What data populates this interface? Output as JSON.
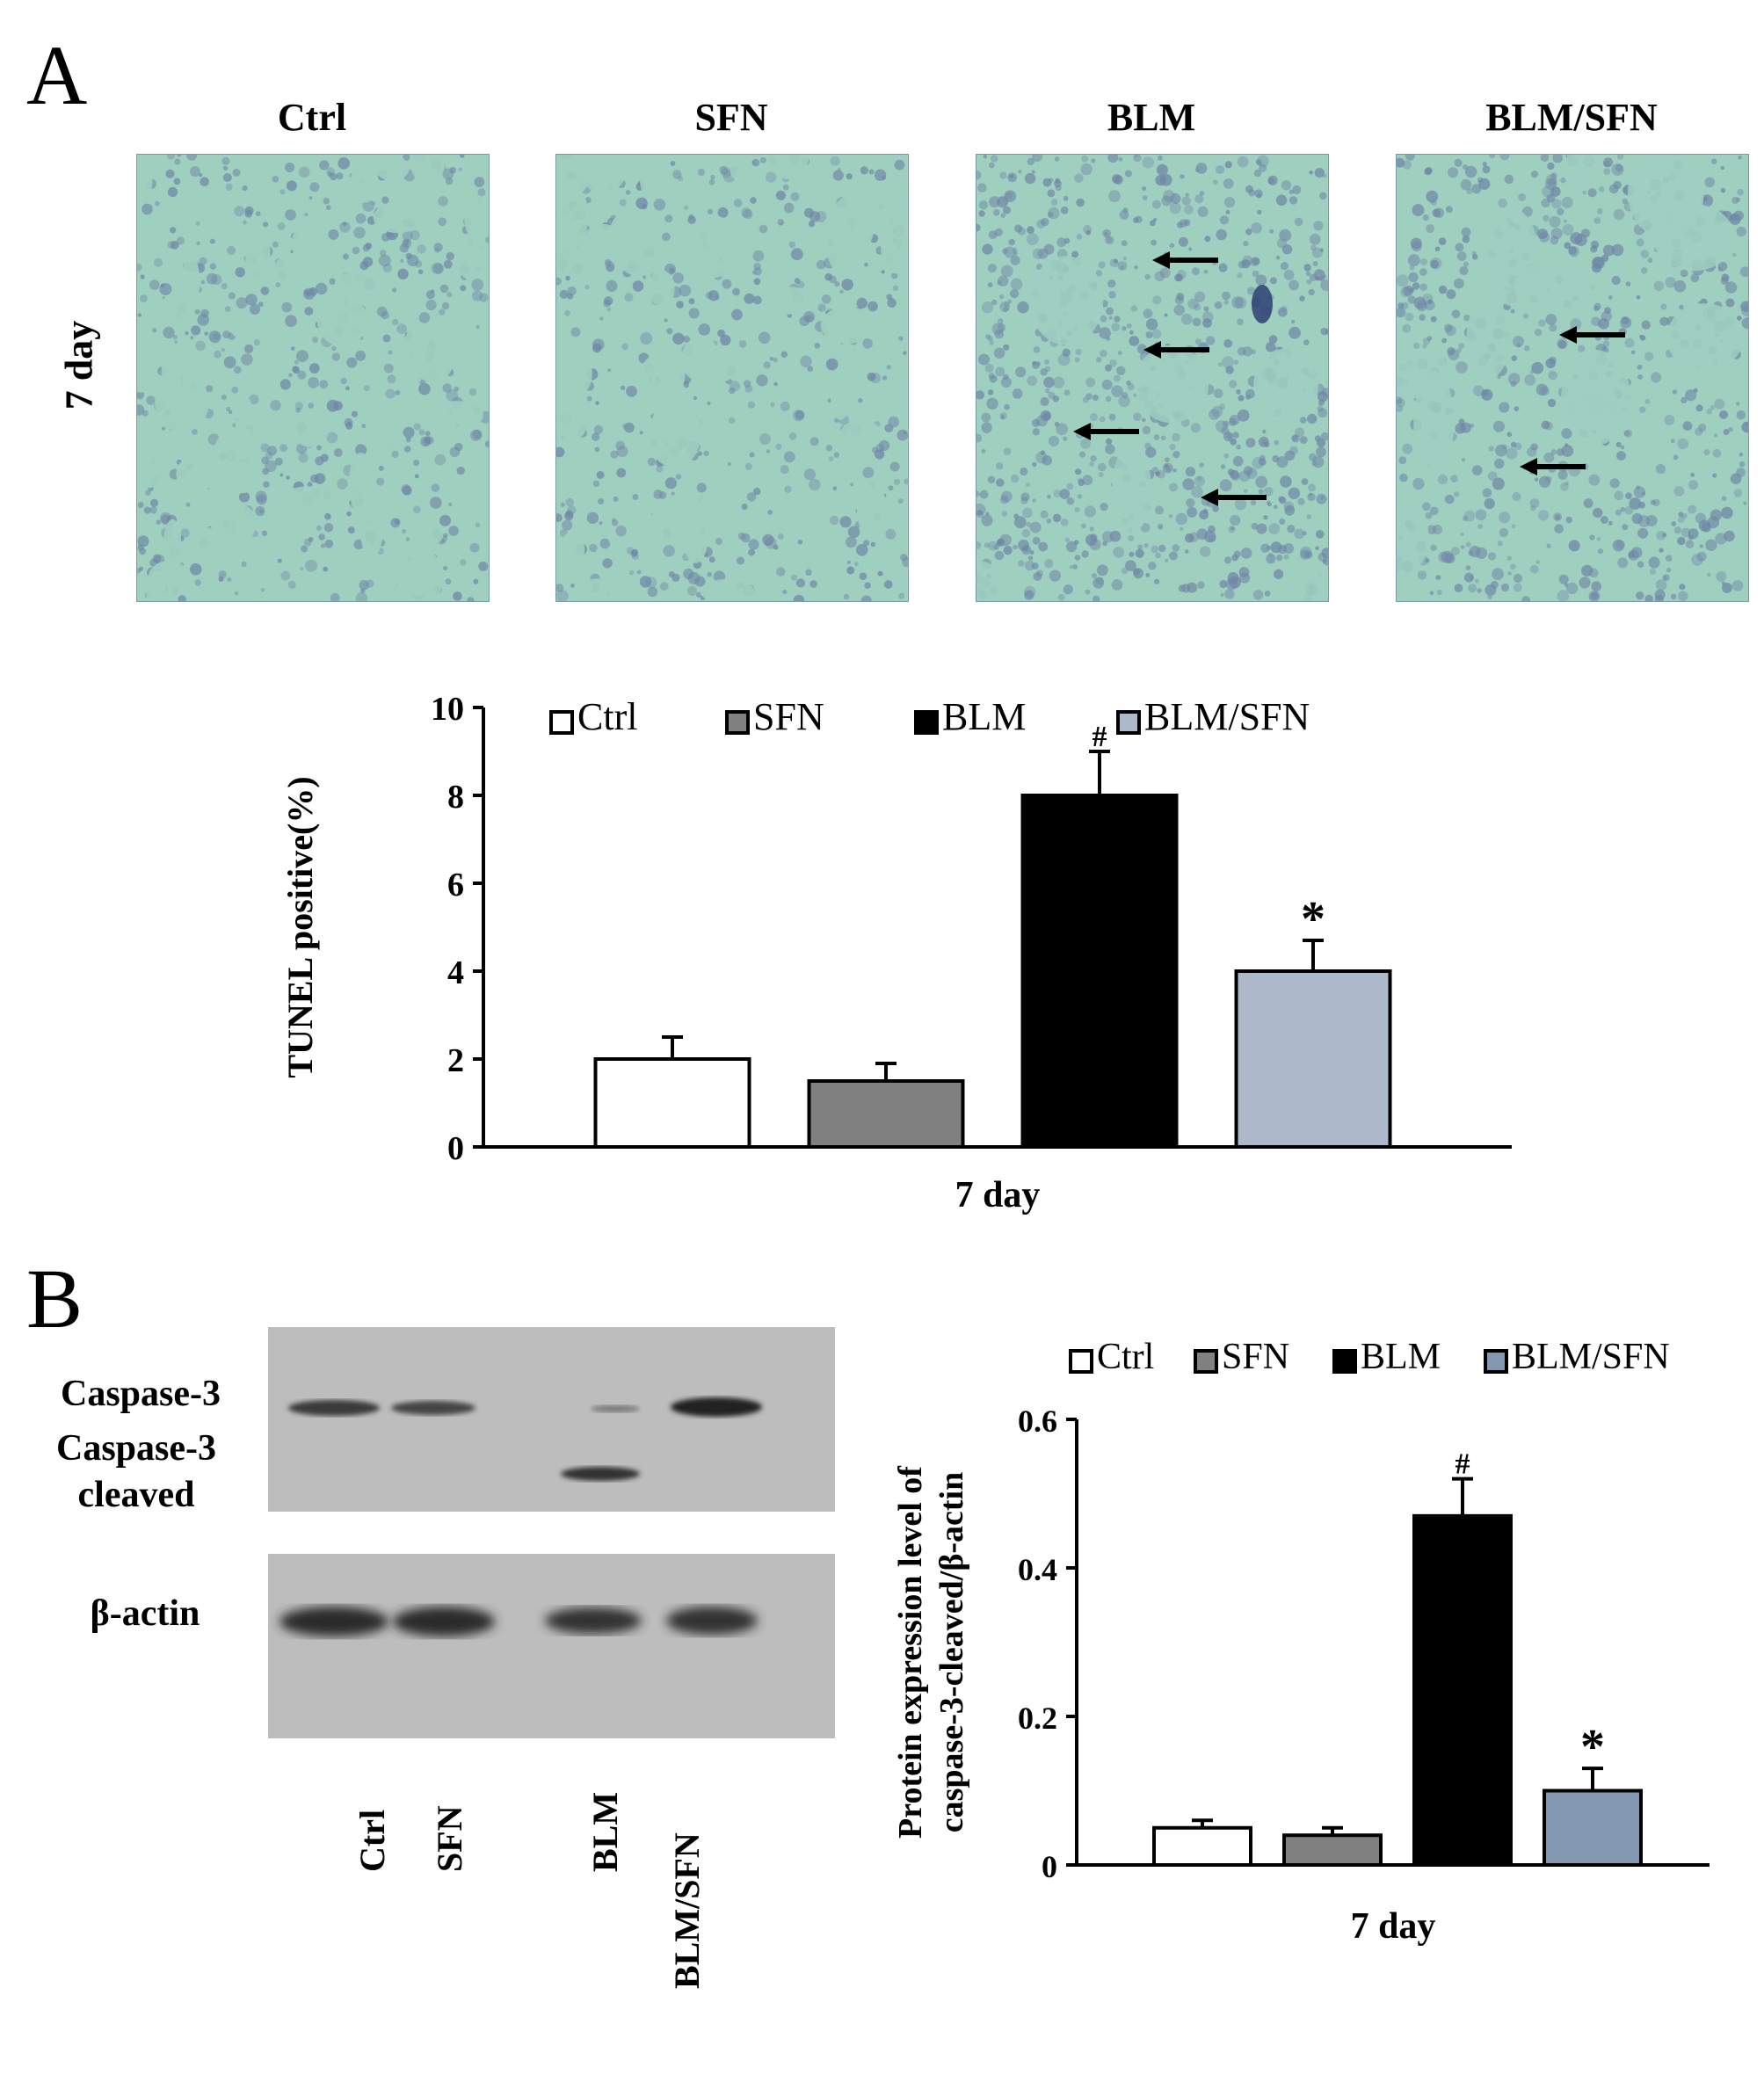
{
  "panelA": {
    "letter": "A",
    "columns": [
      "Ctrl",
      "SFN",
      "BLM",
      "BLM/SFN"
    ],
    "row_label": "7 day"
  },
  "panelB": {
    "letter": "B",
    "blot_labels": {
      "caspase3": "Caspase-3",
      "caspase3_cleaved_line1": "Caspase-3",
      "caspase3_cleaved_line2": "cleaved",
      "beta_actin": "β-actin"
    },
    "lanes": [
      "Ctrl",
      "SFN",
      "BLM",
      "BLM/SFN"
    ]
  },
  "colors": {
    "Ctrl": "#ffffff",
    "SFN": "#808080",
    "BLM": "#000000",
    "BLM/SFN_A": "#adb9ca",
    "BLM/SFN_B": "#8497b0",
    "tissue_bg": "#9fcfbf",
    "tissue_stain": "#6f86a6"
  },
  "chart_data": [
    {
      "type": "bar",
      "categories": [
        "Ctrl",
        "SFN",
        "BLM",
        "BLM/SFN"
      ],
      "values": [
        2.0,
        1.5,
        8.0,
        4.0
      ],
      "errors": [
        0.5,
        0.4,
        1.0,
        0.7
      ],
      "annotations": [
        "",
        "",
        "#",
        "*"
      ],
      "legend": [
        "Ctrl",
        "SFN",
        "BLM",
        "BLM/SFN"
      ],
      "legend_position": "top",
      "xlabel": "7 day",
      "ylabel": "TUNEL positive(%)",
      "ylim": [
        0,
        10
      ],
      "yticks": [
        "0",
        "2",
        "4",
        "6",
        "8",
        "10"
      ],
      "grid": false
    },
    {
      "type": "bar",
      "categories": [
        "Ctrl",
        "SFN",
        "BLM",
        "BLM/SFN"
      ],
      "values": [
        0.05,
        0.04,
        0.47,
        0.1
      ],
      "errors": [
        0.01,
        0.01,
        0.05,
        0.03
      ],
      "annotations": [
        "",
        "",
        "#",
        "*"
      ],
      "legend": [
        "Ctrl",
        "SFN",
        "BLM",
        "BLM/SFN"
      ],
      "legend_position": "top",
      "xlabel": "7 day",
      "ylabel_line1": "Protein expression level of",
      "ylabel_line2": "caspase-3-cleaved/β-actin",
      "ylim": [
        0,
        0.6
      ],
      "yticks": [
        "0",
        "0.2",
        "0.4",
        "0.6"
      ],
      "grid": false
    }
  ]
}
